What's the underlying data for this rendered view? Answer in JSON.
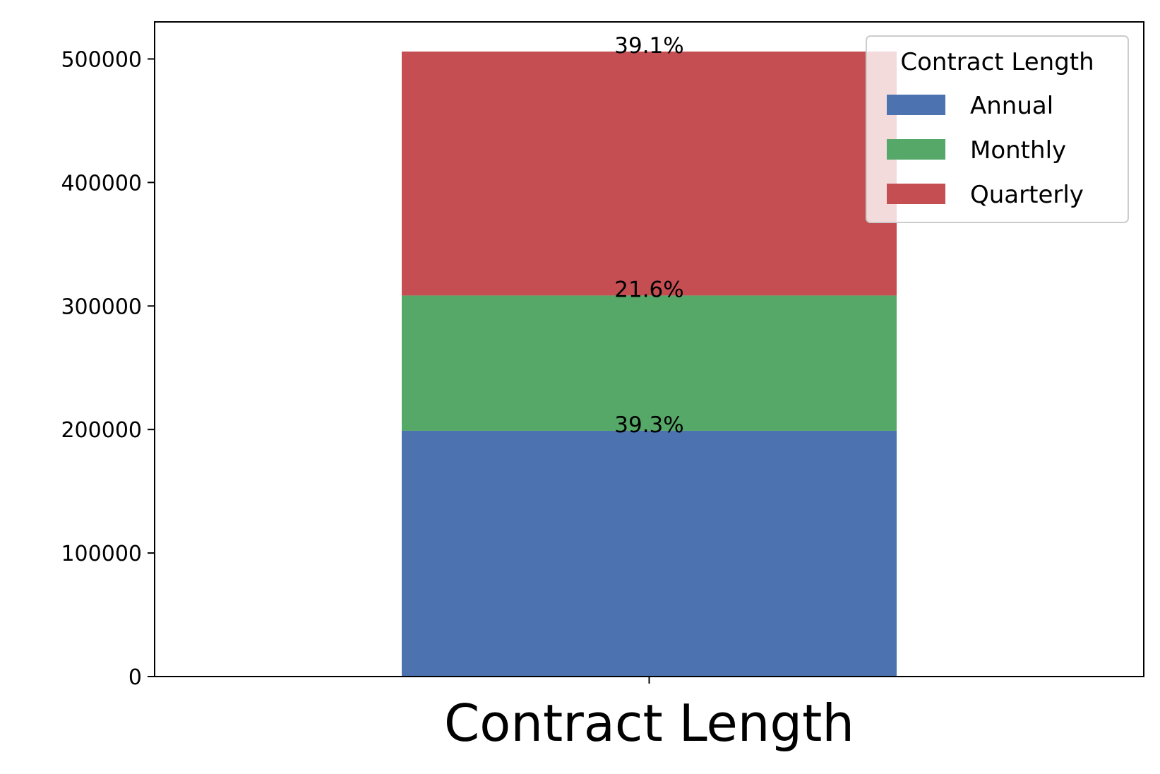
{
  "chart_data": {
    "type": "bar",
    "stacked": true,
    "categories": [
      ""
    ],
    "series": [
      {
        "name": "Annual",
        "values": [
          199000
        ],
        "color": "#4c72b0",
        "label": "39.3%"
      },
      {
        "name": "Monthly",
        "values": [
          109500
        ],
        "color": "#55a868",
        "label": "21.6%"
      },
      {
        "name": "Quarterly",
        "values": [
          197500
        ],
        "color": "#c44e52",
        "label": "39.1%"
      }
    ],
    "title": "",
    "xlabel": "Contract Length",
    "ylabel": "",
    "ylim": [
      0,
      530000
    ],
    "yticks": [
      0,
      100000,
      200000,
      300000,
      400000,
      500000
    ],
    "grid": false,
    "legend": {
      "title": "Contract Length",
      "placement": "top-right"
    }
  }
}
